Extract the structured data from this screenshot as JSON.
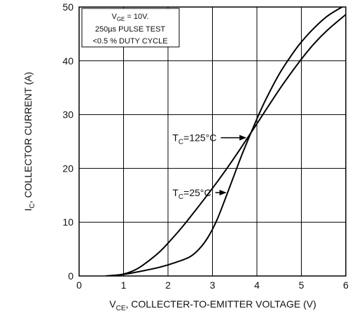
{
  "chart_data": {
    "type": "line",
    "title": "",
    "xlabel": {
      "sym": "V",
      "sub": "CE",
      "rest": ", COLLECTER-TO-EMITTER VOLTAGE (V)"
    },
    "ylabel": {
      "sym": "I",
      "sub": "C",
      "rest": ", COLLECTOR CURRENT (A)"
    },
    "xlim": [
      0,
      6
    ],
    "ylim": [
      0,
      50
    ],
    "xticks": [
      "0",
      "1",
      "2",
      "3",
      "4",
      "5",
      "6"
    ],
    "yticks": [
      "0",
      "10",
      "20",
      "30",
      "40",
      "50"
    ],
    "grid": true,
    "conditions": {
      "line1": {
        "sym": "V",
        "sub": "GE",
        "rest": " = 10V."
      },
      "line2": "250µs PULSE TEST",
      "line3": "<0.5 % DUTY CYCLE"
    },
    "series": [
      {
        "name": {
          "sym": "T",
          "sub": "C",
          "rest": "=125°C"
        },
        "x": [
          0.6,
          0.9,
          1.1,
          1.3,
          1.5,
          1.8,
          2.0,
          2.3,
          2.6,
          3.0,
          3.3,
          3.6,
          4.0,
          4.3,
          4.6,
          5.0,
          5.3,
          5.6,
          6.0
        ],
        "y": [
          0,
          0.2,
          0.6,
          1.3,
          2.4,
          4.4,
          6.1,
          8.9,
          12.0,
          16.3,
          19.7,
          23.3,
          28.3,
          32.1,
          35.8,
          40.3,
          43.3,
          45.8,
          48.6
        ]
      },
      {
        "name": {
          "sym": "T",
          "sub": "C",
          "rest": "=25°C"
        },
        "x": [
          0.6,
          1.0,
          1.4,
          1.8,
          2.2,
          2.5,
          2.7,
          2.9,
          3.1,
          3.3,
          3.5,
          3.7,
          4.0,
          4.2,
          4.5,
          4.8,
          5.0,
          5.3,
          5.6,
          6.0
        ],
        "y": [
          0,
          0.3,
          0.9,
          1.6,
          2.6,
          3.6,
          5.0,
          7.2,
          10.4,
          14.6,
          19.0,
          23.3,
          29.2,
          32.8,
          37.5,
          41.3,
          43.5,
          46.2,
          48.4,
          50.4
        ]
      }
    ],
    "annotations": [
      {
        "series": 0,
        "label_at": [
          2.1,
          25.7
        ],
        "arrow_to": [
          3.75,
          25.7
        ]
      },
      {
        "series": 1,
        "label_at": [
          2.1,
          15.5
        ],
        "arrow_to": [
          3.3,
          15.5
        ]
      }
    ]
  }
}
